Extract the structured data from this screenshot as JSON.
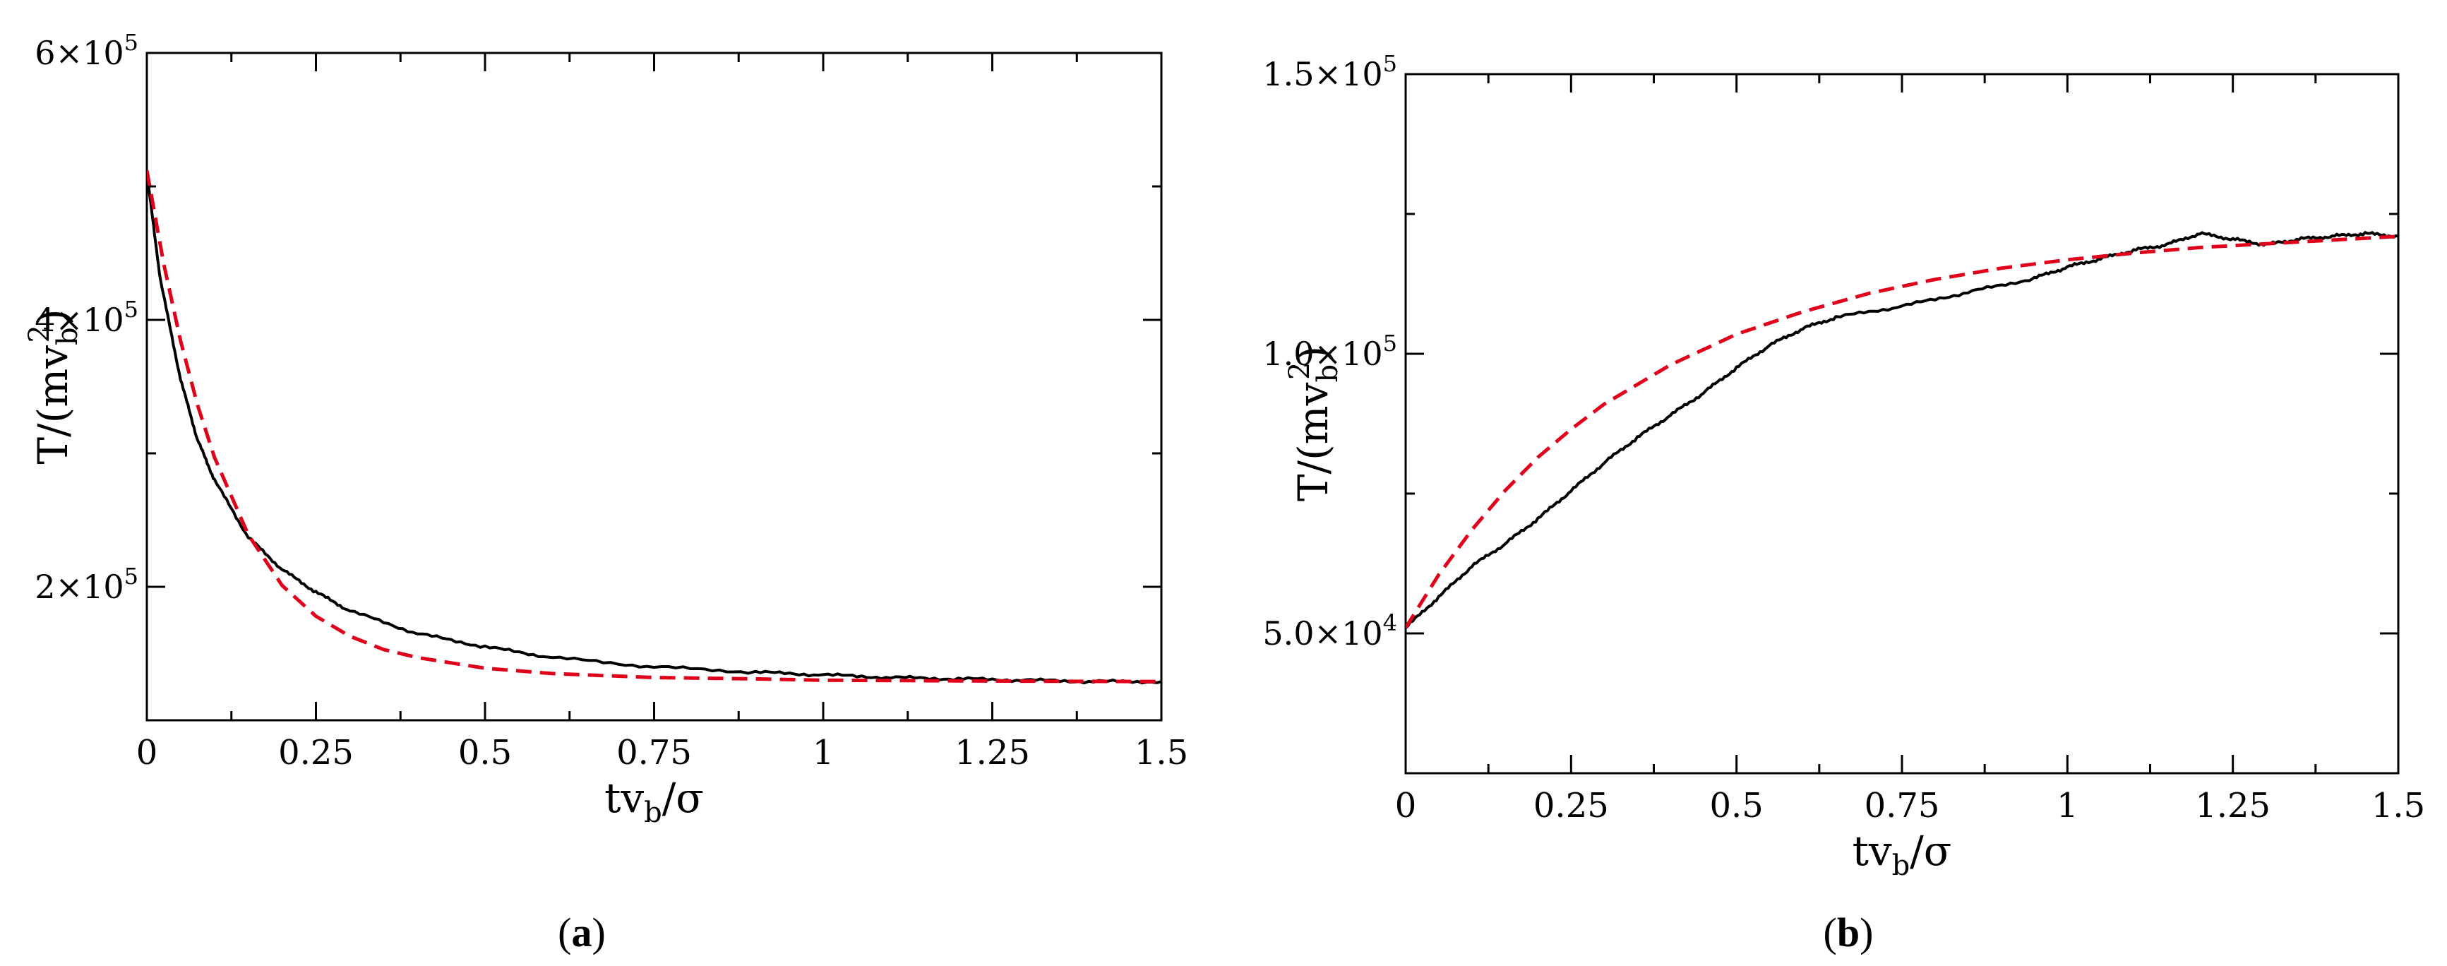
{
  "chart_data": [
    {
      "type": "line",
      "panel_label": "a",
      "xlabel": "tv_b/σ",
      "ylabel": "T/(mv_b^2)",
      "xlim": [
        0,
        1.5
      ],
      "ylim": [
        100000,
        600000
      ],
      "x_ticks": [
        0,
        0.25,
        0.5,
        0.75,
        1,
        1.25,
        1.5
      ],
      "x_tick_labels": [
        "0",
        "0.25",
        "0.5",
        "0.75",
        "1",
        "1.25",
        "1.5"
      ],
      "y_ticks": [
        200000,
        400000,
        600000
      ],
      "y_tick_labels": [
        {
          "mantissa": "2×10",
          "exponent": "5"
        },
        {
          "mantissa": "4×10",
          "exponent": "5"
        },
        {
          "mantissa": "6×10",
          "exponent": "5"
        }
      ],
      "grid": false,
      "series": [
        {
          "style": "solid",
          "color": "#000000",
          "x": [
            0,
            0.02,
            0.05,
            0.075,
            0.1,
            0.15,
            0.2,
            0.25,
            0.3,
            0.4,
            0.5,
            0.6,
            0.75,
            0.9,
            1.0,
            1.1,
            1.2,
            1.3,
            1.4,
            1.5
          ],
          "y": [
            510000,
            430000,
            355000,
            310000,
            280000,
            237000,
            213000,
            196000,
            182000,
            165000,
            155000,
            147000,
            140000,
            136000,
            134000,
            132000,
            131000,
            130000,
            129000,
            129000
          ]
        },
        {
          "style": "dashed",
          "color": "#e0001a",
          "x": [
            0,
            0.025,
            0.05,
            0.075,
            0.1,
            0.15,
            0.2,
            0.25,
            0.3,
            0.35,
            0.4,
            0.5,
            0.6,
            0.75,
            0.9,
            1.0,
            1.2,
            1.35,
            1.5
          ],
          "y": [
            512000,
            442000,
            384000,
            336000,
            297000,
            239000,
            201000,
            178000,
            163000,
            153000,
            147000,
            139000,
            135000,
            132000,
            131000,
            130000,
            129500,
            129200,
            129000
          ]
        }
      ]
    },
    {
      "type": "line",
      "panel_label": "b",
      "xlabel": "tv_b/σ",
      "ylabel": "T/(mv_b^2)",
      "xlim": [
        0,
        1.5
      ],
      "ylim": [
        25000,
        150000
      ],
      "x_ticks": [
        0,
        0.25,
        0.5,
        0.75,
        1,
        1.25,
        1.5
      ],
      "x_tick_labels": [
        "0",
        "0.25",
        "0.5",
        "0.75",
        "1",
        "1.25",
        "1.5"
      ],
      "y_ticks": [
        50000,
        100000,
        150000
      ],
      "y_tick_labels": [
        {
          "mantissa": "5.0×10",
          "exponent": "4"
        },
        {
          "mantissa": "1.0×10",
          "exponent": "5"
        },
        {
          "mantissa": "1.5×10",
          "exponent": "5"
        }
      ],
      "grid": false,
      "series": [
        {
          "style": "solid",
          "color": "#000000",
          "x": [
            0,
            0.05,
            0.1,
            0.15,
            0.2,
            0.25,
            0.3,
            0.35,
            0.4,
            0.45,
            0.5,
            0.55,
            0.6,
            0.65,
            0.75,
            0.85,
            0.95,
            1.0,
            1.05,
            1.1,
            1.15,
            1.2,
            1.25,
            1.3,
            1.35,
            1.4,
            1.45,
            1.5
          ],
          "y": [
            51000,
            56500,
            62000,
            66000,
            70500,
            75500,
            80500,
            85000,
            89000,
            93000,
            97500,
            101500,
            104500,
            106500,
            108500,
            111000,
            113500,
            115500,
            117000,
            118500,
            119500,
            121500,
            120500,
            119500,
            120500,
            121000,
            121500,
            121000
          ]
        },
        {
          "style": "dashed",
          "color": "#e0001a",
          "x": [
            0,
            0.05,
            0.1,
            0.15,
            0.2,
            0.25,
            0.3,
            0.4,
            0.5,
            0.6,
            0.7,
            0.8,
            0.9,
            1.0,
            1.1,
            1.2,
            1.35,
            1.5
          ],
          "y": [
            51000,
            60500,
            68500,
            75500,
            81500,
            86500,
            91000,
            98000,
            103500,
            107500,
            110800,
            113300,
            115300,
            116800,
            118000,
            119000,
            120000,
            121000
          ]
        }
      ]
    }
  ]
}
